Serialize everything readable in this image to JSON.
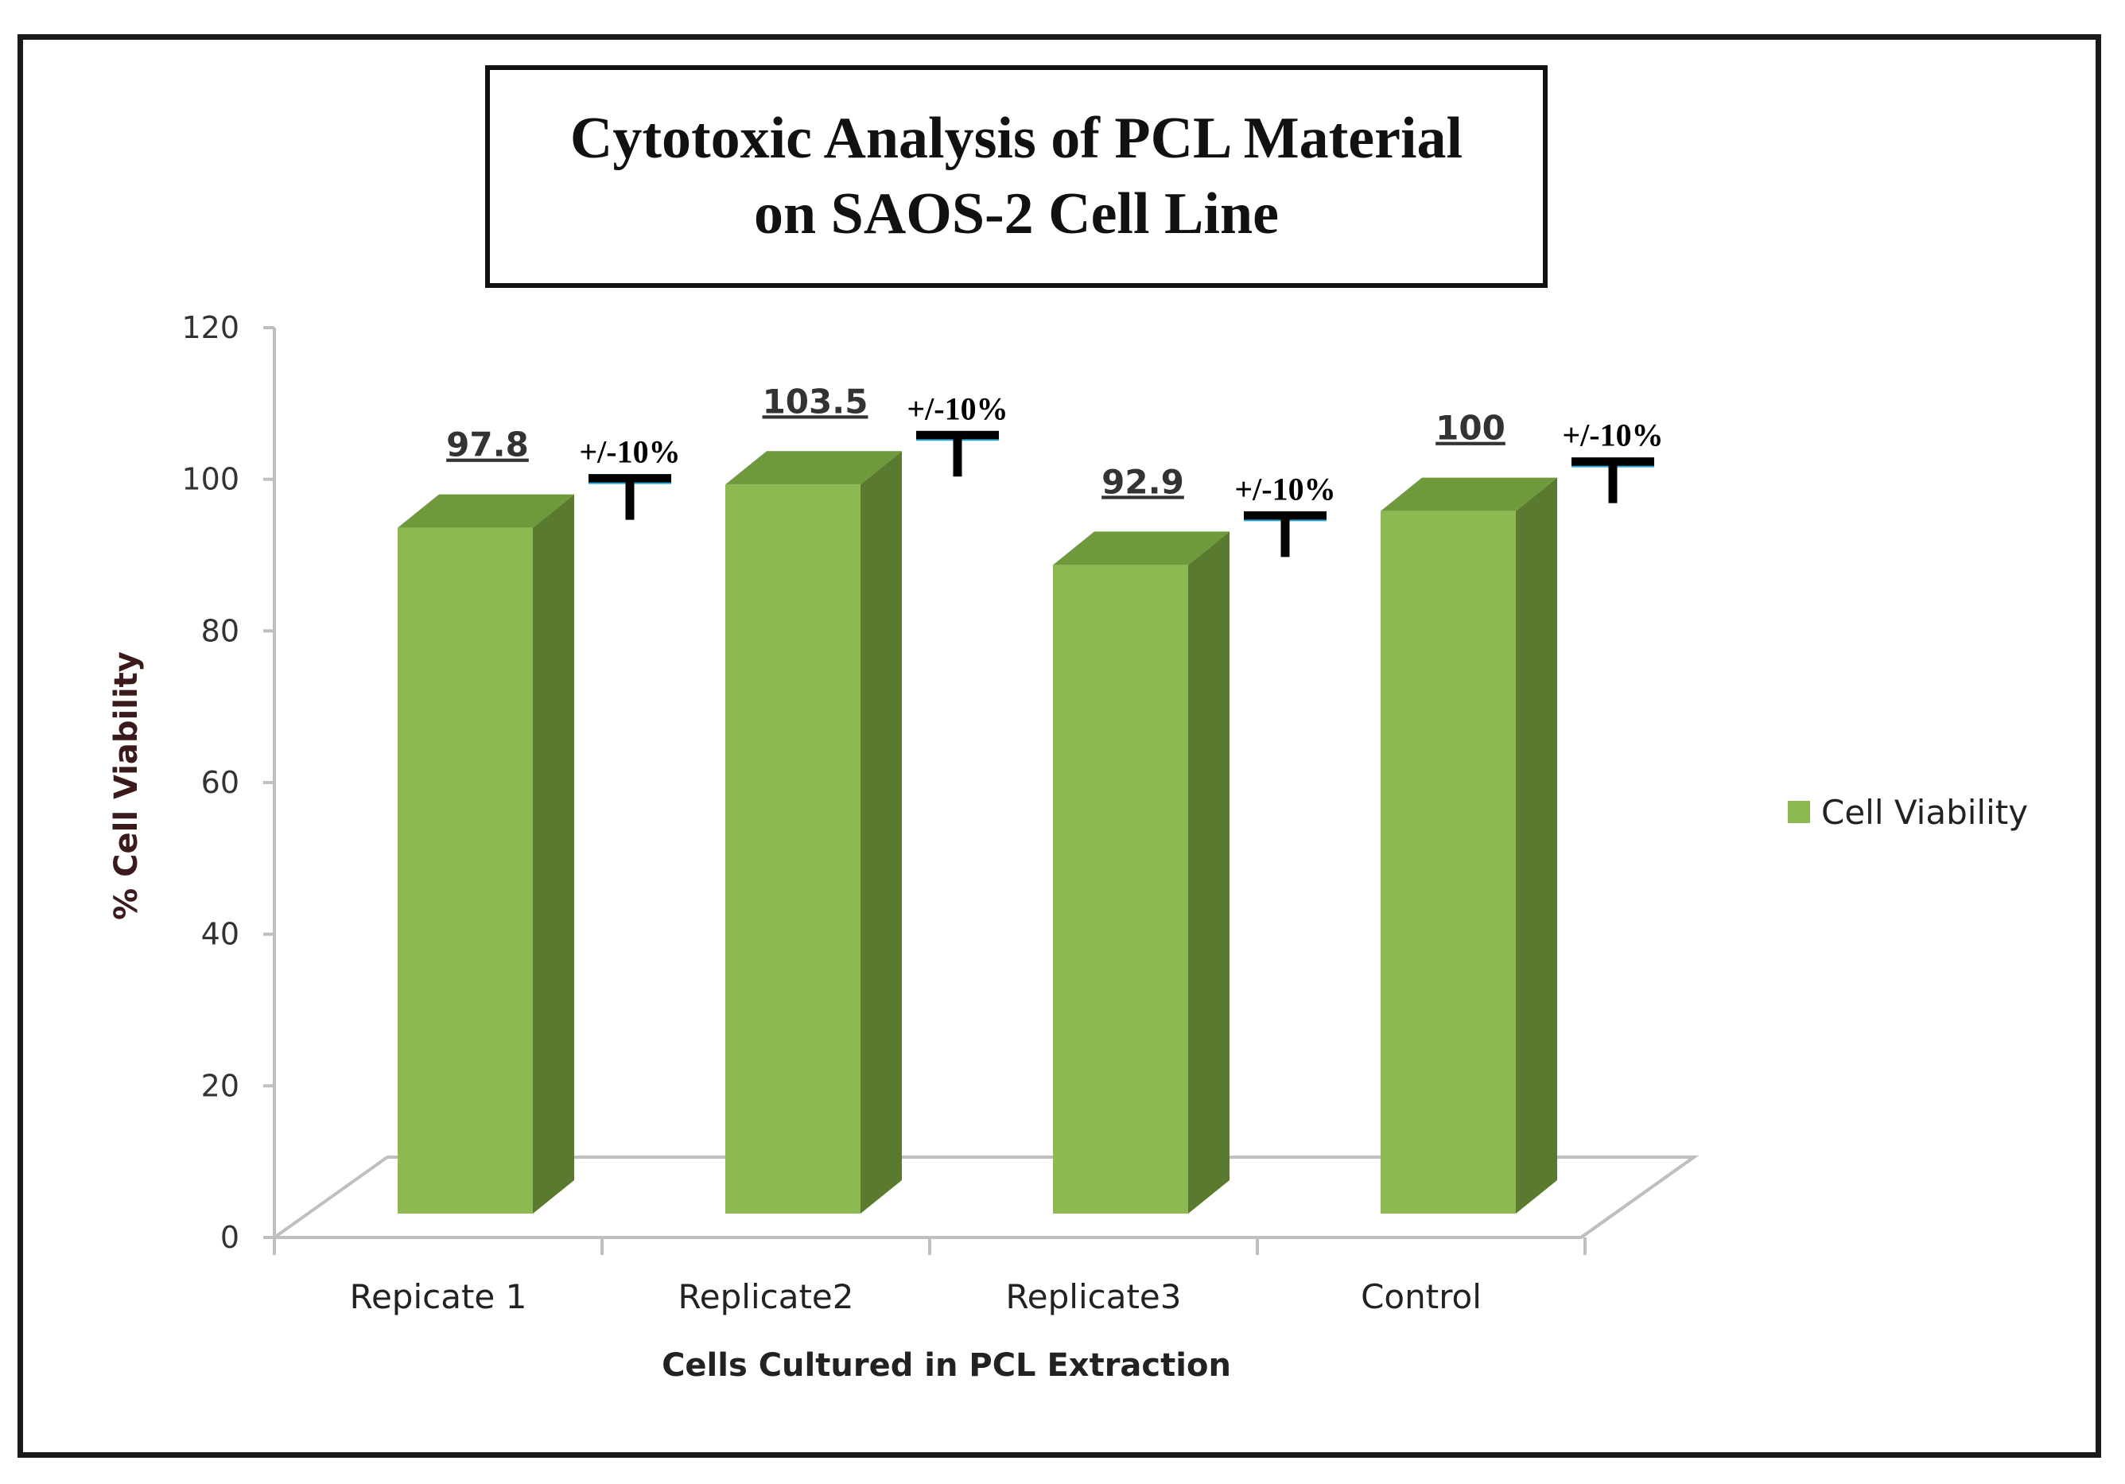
{
  "chart_data": {
    "type": "bar",
    "title_lines": [
      "Cytotoxic Analysis of PCL Material",
      "on SAOS-2 Cell Line"
    ],
    "categories": [
      "Repicate 1",
      "Replicate2",
      "Replicate3",
      "Control"
    ],
    "series": [
      {
        "name": "Cell Viability",
        "values": [
          97.8,
          103.5,
          92.9,
          100
        ],
        "color": "#8db952",
        "side_color": "#5a7a30",
        "top_color": "#6f9a3c"
      }
    ],
    "value_labels": [
      "97.8",
      "103.5",
      "92.9",
      "100"
    ],
    "error_labels": [
      "+/-10%",
      "+/-10%",
      "+/-10%",
      "+/-10%"
    ],
    "xlabel": "Cells Cultured in PCL Extraction",
    "ylabel": "% Cell Viability",
    "ylim": [
      0,
      120
    ],
    "yticks": [
      0,
      20,
      40,
      60,
      80,
      100,
      120
    ],
    "legend_position": "right",
    "style": "3d-column"
  }
}
